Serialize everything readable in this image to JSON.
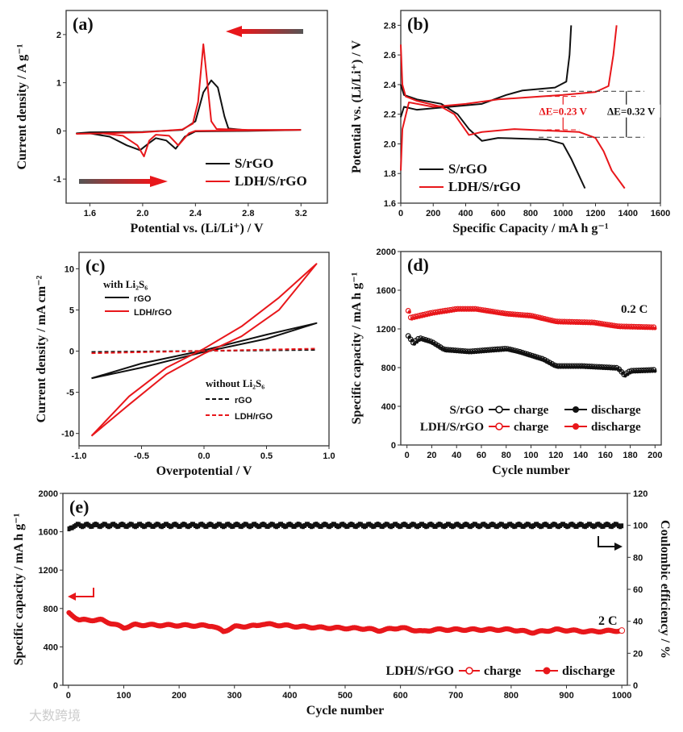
{
  "colors": {
    "black": "#111111",
    "red": "#e8171b"
  },
  "watermark": "大数跨境",
  "chart_data": [
    {
      "id": "a",
      "type": "line",
      "panel_label": "(a)",
      "xlabel": "Potential vs. (Li/Li⁺) / V",
      "ylabel": "Current density / A g⁻¹",
      "xlim": [
        1.42,
        3.4
      ],
      "ylim": [
        -1.5,
        2.5
      ],
      "xticks": [
        1.6,
        2.0,
        2.4,
        2.8,
        3.2
      ],
      "xtick_labels": [
        "1.6",
        "2.0",
        "2.4",
        "2.8",
        "3.2"
      ],
      "yticks": [
        -1,
        0,
        1,
        2
      ],
      "ytick_labels": [
        "-1",
        "0",
        "1",
        "2"
      ],
      "legend": [
        "S/rGO",
        "LDH/S/rGO"
      ],
      "legend_position": "bottom-right",
      "series": [
        {
          "name": "S/rGO",
          "color": "black",
          "points": [
            [
              3.2,
              0.02
            ],
            [
              2.8,
              0.0
            ],
            [
              2.4,
              -0.01
            ],
            [
              2.32,
              -0.12
            ],
            [
              2.25,
              -0.37
            ],
            [
              2.18,
              -0.2
            ],
            [
              2.1,
              -0.15
            ],
            [
              2.05,
              -0.25
            ],
            [
              1.98,
              -0.4
            ],
            [
              1.88,
              -0.3
            ],
            [
              1.75,
              -0.12
            ],
            [
              1.6,
              -0.05
            ],
            [
              1.5,
              -0.05
            ],
            [
              1.6,
              -0.03
            ],
            [
              2.0,
              -0.02
            ],
            [
              2.3,
              0.02
            ],
            [
              2.4,
              0.2
            ],
            [
              2.46,
              0.8
            ],
            [
              2.52,
              1.05
            ],
            [
              2.57,
              0.9
            ],
            [
              2.62,
              0.3
            ],
            [
              2.65,
              0.05
            ],
            [
              2.8,
              0.01
            ],
            [
              3.2,
              0.02
            ]
          ]
        },
        {
          "name": "LDH/S/rGO",
          "color": "red",
          "points": [
            [
              3.2,
              0.02
            ],
            [
              2.4,
              0.0
            ],
            [
              2.35,
              -0.05
            ],
            [
              2.27,
              -0.3
            ],
            [
              2.2,
              -0.1
            ],
            [
              2.1,
              -0.08
            ],
            [
              2.05,
              -0.2
            ],
            [
              2.01,
              -0.53
            ],
            [
              1.96,
              -0.3
            ],
            [
              1.85,
              -0.1
            ],
            [
              1.7,
              -0.05
            ],
            [
              1.5,
              -0.06
            ],
            [
              1.7,
              -0.05
            ],
            [
              2.0,
              -0.03
            ],
            [
              2.3,
              0.03
            ],
            [
              2.38,
              0.15
            ],
            [
              2.42,
              0.6
            ],
            [
              2.46,
              1.8
            ],
            [
              2.49,
              1.0
            ],
            [
              2.52,
              0.2
            ],
            [
              2.56,
              0.04
            ],
            [
              2.8,
              0.02
            ],
            [
              3.2,
              0.02
            ]
          ]
        }
      ]
    },
    {
      "id": "b",
      "type": "line",
      "panel_label": "(b)",
      "xlabel": "Specific Capacity / mA h g⁻¹",
      "ylabel": "Potential vs. (Li/Li⁺) / V",
      "xlim": [
        0,
        1600
      ],
      "ylim": [
        1.6,
        2.9
      ],
      "xticks": [
        0,
        200,
        400,
        600,
        800,
        1000,
        1200,
        1400,
        1600
      ],
      "xtick_labels": [
        "0",
        "200",
        "400",
        "600",
        "800",
        "1000",
        "1200",
        "1400",
        "1600"
      ],
      "yticks": [
        1.6,
        1.8,
        2.0,
        2.2,
        2.4,
        2.6,
        2.8
      ],
      "ytick_labels": [
        "1.6",
        "1.8",
        "2.0",
        "2.2",
        "2.4",
        "2.6",
        "2.8"
      ],
      "legend": [
        "S/rGO",
        "LDH/S/rGO"
      ],
      "legend_position": "bottom-left",
      "annotations": [
        "ΔE=0.23 V",
        "ΔE=0.32 V"
      ],
      "series": [
        {
          "name": "S/rGO discharge",
          "color": "black",
          "points": [
            [
              0,
              2.4
            ],
            [
              20,
              2.33
            ],
            [
              100,
              2.3
            ],
            [
              250,
              2.27
            ],
            [
              350,
              2.2
            ],
            [
              420,
              2.1
            ],
            [
              500,
              2.02
            ],
            [
              600,
              2.04
            ],
            [
              900,
              2.03
            ],
            [
              1000,
              2.0
            ],
            [
              1050,
              1.9
            ],
            [
              1135,
              1.7
            ]
          ]
        },
        {
          "name": "S/rGO charge",
          "color": "black",
          "points": [
            [
              0,
              2.18
            ],
            [
              20,
              2.25
            ],
            [
              100,
              2.23
            ],
            [
              300,
              2.25
            ],
            [
              500,
              2.27
            ],
            [
              650,
              2.33
            ],
            [
              750,
              2.36
            ],
            [
              950,
              2.38
            ],
            [
              1020,
              2.42
            ],
            [
              1040,
              2.6
            ],
            [
              1050,
              2.8
            ]
          ]
        },
        {
          "name": "LDH/S/rGO discharge",
          "color": "red",
          "points": [
            [
              0,
              2.67
            ],
            [
              10,
              2.4
            ],
            [
              30,
              2.32
            ],
            [
              100,
              2.29
            ],
            [
              250,
              2.25
            ],
            [
              330,
              2.2
            ],
            [
              420,
              2.06
            ],
            [
              500,
              2.08
            ],
            [
              700,
              2.1
            ],
            [
              1100,
              2.08
            ],
            [
              1200,
              2.04
            ],
            [
              1250,
              1.95
            ],
            [
              1300,
              1.82
            ],
            [
              1380,
              1.7
            ]
          ]
        },
        {
          "name": "LDH/S/rGO charge",
          "color": "red",
          "points": [
            [
              0,
              1.82
            ],
            [
              10,
              2.1
            ],
            [
              50,
              2.28
            ],
            [
              200,
              2.25
            ],
            [
              400,
              2.27
            ],
            [
              600,
              2.3
            ],
            [
              1000,
              2.33
            ],
            [
              1200,
              2.35
            ],
            [
              1280,
              2.39
            ],
            [
              1310,
              2.6
            ],
            [
              1330,
              2.8
            ]
          ]
        }
      ]
    },
    {
      "id": "c",
      "type": "line",
      "panel_label": "(c)",
      "xlabel": "Overpotential / V",
      "ylabel": "Current density / mA cm⁻²",
      "xlim": [
        -1.0,
        1.0
      ],
      "ylim": [
        -11.5,
        12
      ],
      "xticks": [
        -1.0,
        -0.5,
        0.0,
        0.5,
        1.0
      ],
      "xtick_labels": [
        "-1.0",
        "-0.5",
        "0.0",
        "0.5",
        "1.0"
      ],
      "yticks": [
        -10,
        -5,
        0,
        5,
        10
      ],
      "ytick_labels": [
        "-10",
        "-5",
        "0",
        "5",
        "10"
      ],
      "legend_groups": [
        {
          "title": "with Li₂S₆",
          "items": [
            "rGO",
            "LDH/rGO"
          ]
        },
        {
          "title": "without Li₂S₆",
          "items": [
            "rGO",
            "LDH/rGO"
          ]
        }
      ],
      "series": [
        {
          "name": "rGO with Li2S6",
          "color": "black",
          "dash": false,
          "points": [
            [
              -0.9,
              -3.3
            ],
            [
              -0.5,
              -1.5
            ],
            [
              0,
              0.1
            ],
            [
              0.5,
              2.0
            ],
            [
              0.9,
              3.4
            ],
            [
              0.5,
              1.5
            ],
            [
              0,
              -0.1
            ],
            [
              -0.5,
              -2.0
            ],
            [
              -0.9,
              -3.3
            ]
          ]
        },
        {
          "name": "LDH/rGO with Li2S6",
          "color": "red",
          "dash": false,
          "points": [
            [
              -0.9,
              -10.3
            ],
            [
              -0.6,
              -5.5
            ],
            [
              -0.3,
              -2
            ],
            [
              0,
              0.3
            ],
            [
              0.3,
              3.0
            ],
            [
              0.6,
              6.5
            ],
            [
              0.9,
              10.6
            ],
            [
              0.6,
              5
            ],
            [
              0.3,
              1.8
            ],
            [
              0,
              -0.3
            ],
            [
              -0.3,
              -2.8
            ],
            [
              -0.6,
              -6.5
            ],
            [
              -0.9,
              -10.3
            ]
          ]
        },
        {
          "name": "rGO without Li2S6",
          "color": "black",
          "dash": true,
          "points": [
            [
              -0.9,
              -0.1
            ],
            [
              0.9,
              0.15
            ]
          ]
        },
        {
          "name": "LDH/rGO without Li2S6",
          "color": "red",
          "dash": true,
          "points": [
            [
              -0.9,
              -0.25
            ],
            [
              0.9,
              0.3
            ]
          ]
        }
      ]
    },
    {
      "id": "d",
      "type": "scatter",
      "panel_label": "(d)",
      "xlabel": "Cycle number",
      "ylabel": "Specific capacity / mA h g⁻¹",
      "xlim": [
        -5,
        205
      ],
      "ylim": [
        0,
        2000
      ],
      "xticks": [
        0,
        20,
        40,
        60,
        80,
        100,
        120,
        140,
        160,
        180,
        200
      ],
      "xtick_labels": [
        "0",
        "20",
        "40",
        "60",
        "80",
        "100",
        "120",
        "140",
        "160",
        "180",
        "200"
      ],
      "yticks": [
        0,
        400,
        800,
        1200,
        1600,
        2000
      ],
      "ytick_labels": [
        "0",
        "400",
        "800",
        "1200",
        "1600",
        "2000"
      ],
      "annotations": [
        "0.2 C"
      ],
      "legend_rows": [
        {
          "name": "S/rGO",
          "color": "black",
          "items": [
            "charge",
            "discharge"
          ]
        },
        {
          "name": "LDH/S/rGO",
          "color": "red",
          "items": [
            "charge",
            "discharge"
          ]
        }
      ],
      "series": [
        {
          "name": "S/rGO",
          "color": "black",
          "points": [
            [
              1,
              1120
            ],
            [
              5,
              1050
            ],
            [
              10,
              1100
            ],
            [
              20,
              1060
            ],
            [
              30,
              980
            ],
            [
              50,
              960
            ],
            [
              80,
              990
            ],
            [
              90,
              960
            ],
            [
              110,
              880
            ],
            [
              120,
              810
            ],
            [
              140,
              810
            ],
            [
              170,
              790
            ],
            [
              175,
              720
            ],
            [
              180,
              760
            ],
            [
              200,
              770
            ]
          ]
        },
        {
          "name": "LDH/S/rGO",
          "color": "red",
          "points": [
            [
              1,
              1380
            ],
            [
              3,
              1310
            ],
            [
              20,
              1360
            ],
            [
              40,
              1400
            ],
            [
              55,
              1400
            ],
            [
              80,
              1350
            ],
            [
              100,
              1330
            ],
            [
              120,
              1270
            ],
            [
              150,
              1260
            ],
            [
              170,
              1220
            ],
            [
              200,
              1210
            ]
          ]
        }
      ]
    },
    {
      "id": "e",
      "type": "scatter",
      "panel_label": "(e)",
      "xlabel": "Cycle number",
      "ylabel": "Specific capacity / mA h g⁻¹",
      "y2label": "Coulombic efficiency / %",
      "xlim": [
        -10,
        1010
      ],
      "ylim": [
        0,
        2000
      ],
      "y2lim": [
        0,
        120
      ],
      "xticks": [
        0,
        100,
        200,
        300,
        400,
        500,
        600,
        700,
        800,
        900,
        1000
      ],
      "xtick_labels": [
        "0",
        "100",
        "200",
        "300",
        "400",
        "500",
        "600",
        "700",
        "800",
        "900",
        "1000"
      ],
      "yticks": [
        0,
        400,
        800,
        1200,
        1600,
        2000
      ],
      "ytick_labels": [
        "0",
        "400",
        "800",
        "1200",
        "1600",
        "2000"
      ],
      "y2ticks": [
        0,
        20,
        40,
        60,
        80,
        100,
        120
      ],
      "y2tick_labels": [
        "0",
        "20",
        "40",
        "60",
        "80",
        "100",
        "120"
      ],
      "annotations": [
        "2 C"
      ],
      "legend": {
        "name": "LDH/S/rGO",
        "items": [
          "charge",
          "discharge"
        ]
      },
      "capacity": [
        [
          1,
          750
        ],
        [
          20,
          680
        ],
        [
          60,
          680
        ],
        [
          100,
          600
        ],
        [
          120,
          630
        ],
        [
          260,
          620
        ],
        [
          280,
          560
        ],
        [
          300,
          610
        ],
        [
          340,
          620
        ],
        [
          350,
          640
        ],
        [
          420,
          610
        ],
        [
          460,
          600
        ],
        [
          540,
          590
        ],
        [
          560,
          570
        ],
        [
          600,
          600
        ],
        [
          640,
          560
        ],
        [
          660,
          580
        ],
        [
          800,
          580
        ],
        [
          840,
          550
        ],
        [
          880,
          580
        ],
        [
          940,
          560
        ],
        [
          1000,
          570
        ]
      ],
      "coulombic_efficiency": [
        [
          1,
          97
        ],
        [
          10,
          100
        ],
        [
          1000,
          100
        ]
      ]
    }
  ]
}
